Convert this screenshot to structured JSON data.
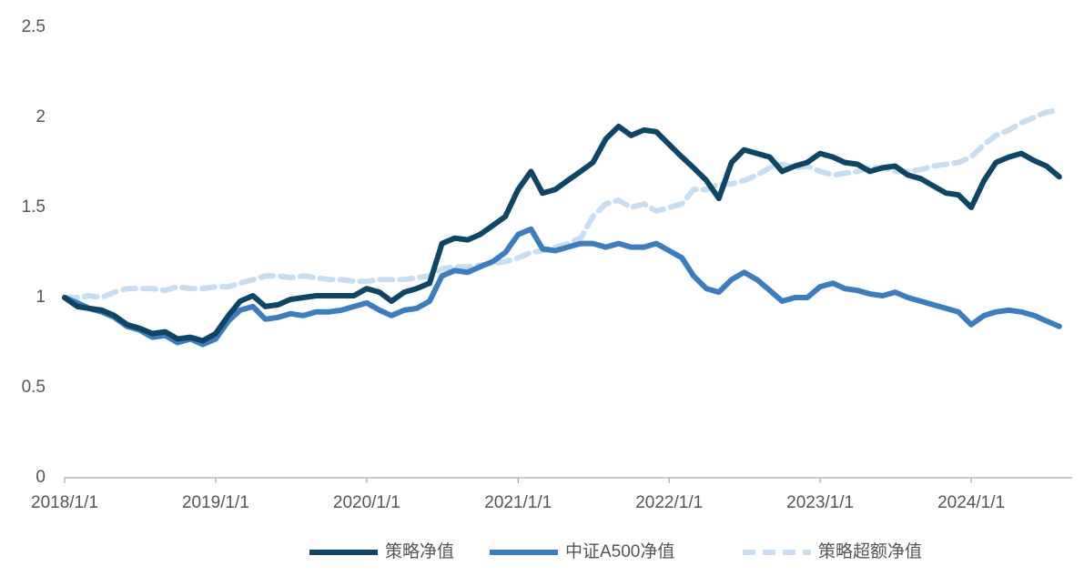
{
  "chart_data": {
    "type": "line",
    "x": [
      "2018/1/1",
      "2018/2/1",
      "2018/3/1",
      "2018/4/1",
      "2018/5/1",
      "2018/6/1",
      "2018/7/1",
      "2018/8/1",
      "2018/9/1",
      "2018/10/1",
      "2018/11/1",
      "2018/12/1",
      "2019/1/1",
      "2019/2/1",
      "2019/3/1",
      "2019/4/1",
      "2019/5/1",
      "2019/6/1",
      "2019/7/1",
      "2019/8/1",
      "2019/9/1",
      "2019/10/1",
      "2019/11/1",
      "2019/12/1",
      "2020/1/1",
      "2020/2/1",
      "2020/3/1",
      "2020/4/1",
      "2020/5/1",
      "2020/6/1",
      "2020/7/1",
      "2020/8/1",
      "2020/9/1",
      "2020/10/1",
      "2020/11/1",
      "2020/12/1",
      "2021/1/1",
      "2021/2/1",
      "2021/3/1",
      "2021/4/1",
      "2021/5/1",
      "2021/6/1",
      "2021/7/1",
      "2021/8/1",
      "2021/9/1",
      "2021/10/1",
      "2021/11/1",
      "2021/12/1",
      "2022/1/1",
      "2022/2/1",
      "2022/3/1",
      "2022/4/1",
      "2022/5/1",
      "2022/6/1",
      "2022/7/1",
      "2022/8/1",
      "2022/9/1",
      "2022/10/1",
      "2022/11/1",
      "2022/12/1",
      "2023/1/1",
      "2023/2/1",
      "2023/3/1",
      "2023/4/1",
      "2023/5/1",
      "2023/6/1",
      "2023/7/1",
      "2023/8/1",
      "2023/9/1",
      "2023/10/1",
      "2023/11/1",
      "2023/12/1",
      "2024/1/1",
      "2024/2/1",
      "2024/3/1",
      "2024/4/1",
      "2024/5/1",
      "2024/6/1",
      "2024/7/1",
      "2024/8/1"
    ],
    "series": [
      {
        "name": "策略净值",
        "color": "#0e4566",
        "dash": false,
        "values": [
          1.0,
          0.95,
          0.94,
          0.93,
          0.9,
          0.85,
          0.83,
          0.8,
          0.81,
          0.77,
          0.78,
          0.76,
          0.8,
          0.9,
          0.98,
          1.01,
          0.95,
          0.96,
          0.99,
          1.0,
          1.01,
          1.01,
          1.01,
          1.01,
          1.05,
          1.03,
          0.98,
          1.03,
          1.05,
          1.08,
          1.3,
          1.33,
          1.32,
          1.35,
          1.4,
          1.45,
          1.6,
          1.7,
          1.58,
          1.6,
          1.65,
          1.7,
          1.75,
          1.88,
          1.95,
          1.9,
          1.93,
          1.92,
          1.85,
          1.78,
          1.72,
          1.65,
          1.55,
          1.75,
          1.82,
          1.8,
          1.78,
          1.7,
          1.73,
          1.75,
          1.8,
          1.78,
          1.75,
          1.74,
          1.7,
          1.72,
          1.73,
          1.68,
          1.66,
          1.62,
          1.58,
          1.57,
          1.5,
          1.65,
          1.75,
          1.78,
          1.8,
          1.76,
          1.73,
          1.67
        ]
      },
      {
        "name": "中证A500净值",
        "color": "#3d7dbf",
        "dash": false,
        "values": [
          1.0,
          0.97,
          0.94,
          0.92,
          0.89,
          0.84,
          0.82,
          0.78,
          0.79,
          0.75,
          0.77,
          0.74,
          0.77,
          0.87,
          0.93,
          0.95,
          0.88,
          0.89,
          0.91,
          0.9,
          0.92,
          0.92,
          0.93,
          0.95,
          0.97,
          0.93,
          0.9,
          0.93,
          0.94,
          0.98,
          1.12,
          1.15,
          1.14,
          1.17,
          1.2,
          1.25,
          1.35,
          1.38,
          1.27,
          1.26,
          1.28,
          1.3,
          1.3,
          1.28,
          1.3,
          1.28,
          1.28,
          1.3,
          1.26,
          1.22,
          1.12,
          1.05,
          1.03,
          1.1,
          1.14,
          1.1,
          1.04,
          0.98,
          1.0,
          1.0,
          1.06,
          1.08,
          1.05,
          1.04,
          1.02,
          1.01,
          1.03,
          1.0,
          0.98,
          0.96,
          0.94,
          0.92,
          0.85,
          0.9,
          0.92,
          0.93,
          0.92,
          0.9,
          0.87,
          0.84
        ]
      },
      {
        "name": "策略超额净值",
        "color": "#c9ddf1",
        "dash": true,
        "values": [
          1.0,
          1.0,
          1.01,
          1.0,
          1.03,
          1.05,
          1.05,
          1.05,
          1.04,
          1.06,
          1.05,
          1.05,
          1.06,
          1.06,
          1.08,
          1.1,
          1.12,
          1.12,
          1.11,
          1.12,
          1.11,
          1.1,
          1.1,
          1.09,
          1.09,
          1.1,
          1.1,
          1.1,
          1.11,
          1.12,
          1.16,
          1.17,
          1.17,
          1.18,
          1.19,
          1.2,
          1.22,
          1.25,
          1.26,
          1.28,
          1.3,
          1.33,
          1.45,
          1.52,
          1.54,
          1.5,
          1.52,
          1.48,
          1.5,
          1.52,
          1.6,
          1.6,
          1.63,
          1.63,
          1.65,
          1.68,
          1.72,
          1.74,
          1.72,
          1.73,
          1.7,
          1.68,
          1.69,
          1.7,
          1.72,
          1.72,
          1.7,
          1.7,
          1.71,
          1.73,
          1.74,
          1.75,
          1.78,
          1.85,
          1.9,
          1.93,
          1.97,
          2.0,
          2.03,
          2.04
        ]
      }
    ],
    "xlim": [
      "2018/1/1",
      "2024/9/1"
    ],
    "xticks": [
      "2018/1/1",
      "2019/1/1",
      "2020/1/1",
      "2021/1/1",
      "2022/1/1",
      "2023/1/1",
      "2024/1/1"
    ],
    "ylim": [
      0,
      2.5
    ],
    "yticks": [
      0,
      0.5,
      1,
      1.5,
      2,
      2.5
    ],
    "grid": false,
    "legend": "bottom"
  }
}
